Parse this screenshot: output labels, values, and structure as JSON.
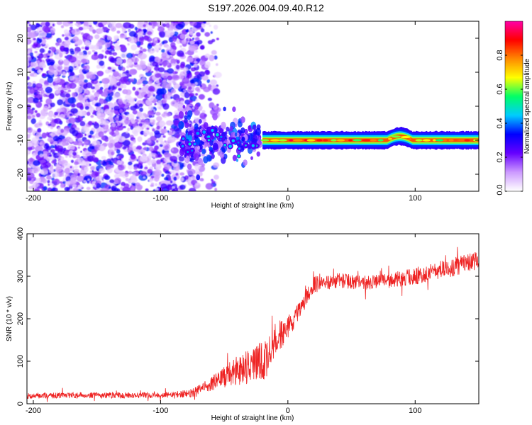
{
  "title": "S197.2026.004.09.40.R12",
  "chart_data": [
    {
      "type": "heatmap",
      "title": "S197.2026.004.09.40.R12",
      "xlabel": "Height of straight line (km)",
      "ylabel": "Frequency (Hz)",
      "xlim": [
        -205,
        150
      ],
      "ylim": [
        -25,
        25
      ],
      "x_ticks": [
        -200,
        -100,
        0,
        100
      ],
      "y_ticks": [
        20,
        10,
        0,
        -10,
        -20
      ],
      "colorbar": {
        "label": "Normalized spectral amplitude",
        "range": [
          0,
          1
        ],
        "ticks": [
          "0.0",
          "0.2",
          "0.4",
          "0.6",
          "0.8"
        ],
        "tick_values": [
          0,
          0.2,
          0.4,
          0.6,
          0.8
        ],
        "colors": [
          "#ffffff",
          "#cc99ff",
          "#6600ff",
          "#0000ff",
          "#00ccff",
          "#00ff66",
          "#ffff00",
          "#ff8800",
          "#ff0000",
          "#ff00aa"
        ]
      },
      "features": {
        "noise_region_x": [
          -205,
          -65
        ],
        "transition_region_x": [
          -85,
          -20
        ],
        "carrier_line_x": [
          -20,
          150
        ],
        "carrier_frequency": -10,
        "carrier_peak_amplitude": 0.9
      }
    },
    {
      "type": "line",
      "title": "",
      "xlabel": "Height of straight line (km)",
      "ylabel": "SNR (10 * v/v)",
      "xlim": [
        -205,
        150
      ],
      "ylim": [
        0,
        400
      ],
      "x_ticks": [
        -200,
        -100,
        0,
        100
      ],
      "y_ticks": [
        0,
        100,
        200,
        300,
        400
      ],
      "series": [
        {
          "name": "SNR",
          "color": "#ee2222",
          "x": [
            -205,
            -180,
            -150,
            -120,
            -90,
            -75,
            -65,
            -55,
            -45,
            -35,
            -25,
            -18,
            -10,
            0,
            5,
            10,
            15,
            20,
            30,
            40,
            60,
            80,
            100,
            120,
            150
          ],
          "values": [
            18,
            20,
            20,
            20,
            21,
            25,
            40,
            55,
            70,
            85,
            95,
            100,
            150,
            180,
            200,
            220,
            255,
            280,
            285,
            290,
            285,
            290,
            300,
            315,
            335
          ],
          "noise_amplitude": [
            10,
            10,
            10,
            10,
            10,
            15,
            20,
            30,
            45,
            55,
            70,
            75,
            55,
            40,
            35,
            30,
            30,
            30,
            25,
            25,
            25,
            25,
            30,
            30,
            35
          ]
        }
      ]
    }
  ]
}
